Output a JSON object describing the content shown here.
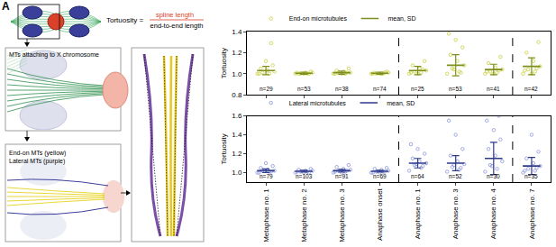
{
  "panel_labels": [
    "A",
    "B"
  ],
  "diagram": {
    "formula": {
      "lhs": "Tortuosity =",
      "numerator": "spline length",
      "denominator": "end-to-end length"
    },
    "inset_label": "MTs attaching to X chromosome",
    "legend_lines": [
      "End-on MTs (yellow)",
      "Lateral MTs (purple)"
    ]
  },
  "chart_data": [
    {
      "type": "scatter",
      "y_label": "Tortuosity",
      "categories": [
        "Metaphase no. 1",
        "Metaphase no. 2",
        "Metaphase no. 3",
        "Anaphase onset",
        "Anaphase no. 1",
        "Anaphase no. 3",
        "Anaphase no. 4",
        "Anaphase no. 7"
      ],
      "series": [
        {
          "name": "End-on microtubules",
          "color": "#c8cf3c",
          "marker": "circle-open",
          "values": [
            [
              1.0,
              1.0,
              1.01,
              1.02,
              1.03,
              1.05,
              1.08,
              1.12,
              1.0,
              1.29
            ],
            [
              1.0,
              1.0,
              1.0,
              1.01,
              1.01,
              1.0,
              1.02,
              1.0,
              1.01,
              1.0
            ],
            [
              1.0,
              1.0,
              1.01,
              1.01,
              1.02,
              1.03,
              1.05,
              1.0,
              1.0,
              1.01
            ],
            [
              1.0,
              1.0,
              1.0,
              1.01,
              1.0,
              1.01,
              1.02,
              1.0,
              1.0,
              1.01
            ],
            [
              1.0,
              1.01,
              1.02,
              1.03,
              1.05,
              1.08,
              1.12,
              1.0,
              1.01,
              1.04
            ],
            [
              1.0,
              1.02,
              1.05,
              1.08,
              1.12,
              1.18,
              1.25,
              1.32,
              1.38,
              1.01,
              1.04
            ],
            [
              1.0,
              1.01,
              1.02,
              1.04,
              1.06,
              1.1,
              1.16,
              1.0,
              1.02,
              1.03
            ],
            [
              1.0,
              1.02,
              1.04,
              1.07,
              1.12,
              1.2,
              1.3,
              1.0,
              1.03,
              1.05
            ]
          ]
        },
        {
          "name": "mean, SD",
          "color": "#7f8f1f",
          "marker": "line-ew-open",
          "values": [
            1.03,
            1.005,
            1.01,
            1.005,
            1.03,
            1.08,
            1.04,
            1.07
          ],
          "sd": [
            0.04,
            0.01,
            0.015,
            0.01,
            0.04,
            0.1,
            0.05,
            0.08
          ]
        }
      ],
      "n_labels": [
        "n=29",
        "n=53",
        "n=38",
        "n=74",
        "n=25",
        "n=53",
        "n=41",
        "n=42"
      ],
      "dividers": [
        3.5,
        6.5
      ],
      "ylim": [
        0.8,
        1.4
      ],
      "yticks": [
        {
          "value": 0.8,
          "label": "0.8"
        },
        {
          "value": 1.0,
          "label": "1.0"
        },
        {
          "value": 1.2,
          "label": "1.2"
        },
        {
          "value": 1.4,
          "label": "1.4"
        }
      ],
      "tick_labels": "y",
      "legend": "top left"
    },
    {
      "type": "scatter",
      "y_label": "Tortuosity",
      "categories": [
        "Metaphase no. 1",
        "Metaphase no. 2",
        "Metaphase no. 3",
        "Anaphase onset",
        "Anaphase no. 1",
        "Anaphase no. 3",
        "Anaphase no. 4",
        "Anaphase no. 7"
      ],
      "series": [
        {
          "name": "Lateral microtubules",
          "color": "#8c96d8",
          "marker": "circle-open",
          "values": [
            [
              1.0,
              1.01,
              1.02,
              1.02,
              1.03,
              1.05,
              1.07,
              1.1,
              1.0,
              1.01
            ],
            [
              1.0,
              1.01,
              1.01,
              1.02,
              1.02,
              1.03,
              1.04,
              1.0,
              1.01,
              1.0
            ],
            [
              1.0,
              1.01,
              1.02,
              1.03,
              1.04,
              1.06,
              1.08,
              1.0,
              1.01,
              1.02
            ],
            [
              1.0,
              1.01,
              1.01,
              1.02,
              1.03,
              1.04,
              1.05,
              1.0,
              1.0,
              1.01
            ],
            [
              1.02,
              1.05,
              1.08,
              1.1,
              1.12,
              1.15,
              1.2,
              1.25,
              1.3,
              1.07,
              1.09
            ],
            [
              1.01,
              1.03,
              1.06,
              1.09,
              1.12,
              1.18,
              1.25,
              1.4,
              1.55,
              1.05,
              1.08
            ],
            [
              1.01,
              1.04,
              1.08,
              1.12,
              1.18,
              1.25,
              1.35,
              1.45,
              1.55,
              1.6,
              1.07
            ],
            [
              1.0,
              1.02,
              1.04,
              1.07,
              1.1,
              1.15,
              1.22,
              1.4,
              1.02,
              1.05
            ]
          ]
        },
        {
          "name": "mean, SD",
          "color": "#2e3a8c",
          "marker": "line-ew-open",
          "values": [
            1.02,
            1.015,
            1.02,
            1.015,
            1.1,
            1.1,
            1.15,
            1.07
          ],
          "sd": [
            0.02,
            0.01,
            0.015,
            0.01,
            0.05,
            0.08,
            0.17,
            0.09
          ]
        }
      ],
      "n_labels": [
        "n=79",
        "n=103",
        "n=91",
        "n=69",
        "n=64",
        "n=52",
        "n=30",
        "n=35"
      ],
      "dividers": [
        3.5,
        6.5
      ],
      "ylim": [
        0.9,
        1.6
      ],
      "yticks": [
        {
          "value": 1.0,
          "label": "1.0"
        },
        {
          "value": 1.2,
          "label": "1.2"
        },
        {
          "value": 1.4,
          "label": "1.4"
        },
        {
          "value": 1.6,
          "label": "1.6"
        }
      ],
      "legend": "top left"
    }
  ]
}
